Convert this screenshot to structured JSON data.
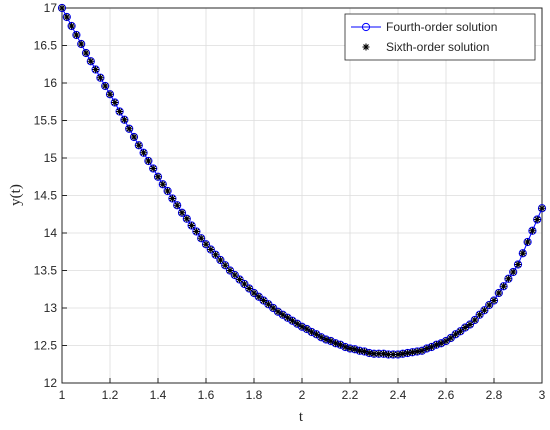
{
  "chart_data": {
    "type": "line",
    "xlabel": "t",
    "ylabel": "y(t)",
    "x": [
      1.0,
      1.02,
      1.04,
      1.06,
      1.08,
      1.1,
      1.12,
      1.14,
      1.16,
      1.18,
      1.2,
      1.22,
      1.24,
      1.26,
      1.28,
      1.3,
      1.32,
      1.34,
      1.36,
      1.38,
      1.4,
      1.42,
      1.44,
      1.46,
      1.48,
      1.5,
      1.52,
      1.54,
      1.56,
      1.58,
      1.6,
      1.62,
      1.64,
      1.66,
      1.68,
      1.7,
      1.72,
      1.74,
      1.76,
      1.78,
      1.8,
      1.82,
      1.84,
      1.86,
      1.88,
      1.9,
      1.92,
      1.94,
      1.96,
      1.98,
      2.0,
      2.02,
      2.04,
      2.06,
      2.08,
      2.1,
      2.12,
      2.14,
      2.16,
      2.18,
      2.2,
      2.22,
      2.24,
      2.26,
      2.28,
      2.3,
      2.32,
      2.34,
      2.36,
      2.38,
      2.4,
      2.42,
      2.44,
      2.46,
      2.48,
      2.5,
      2.52,
      2.54,
      2.56,
      2.58,
      2.6,
      2.62,
      2.64,
      2.66,
      2.68,
      2.7,
      2.72,
      2.74,
      2.76,
      2.78,
      2.8,
      2.82,
      2.84,
      2.86,
      2.88,
      2.9,
      2.92,
      2.94,
      2.96,
      2.98,
      3.0
    ],
    "series": [
      {
        "name": "Fourth-order solution",
        "color": "#0000ff",
        "marker": "circle",
        "values": [
          17.0,
          16.88,
          16.76,
          16.64,
          16.52,
          16.4,
          16.29,
          16.18,
          16.07,
          15.96,
          15.85,
          15.74,
          15.62,
          15.51,
          15.39,
          15.28,
          15.17,
          15.07,
          14.96,
          14.86,
          14.75,
          14.65,
          14.56,
          14.46,
          14.37,
          14.27,
          14.19,
          14.1,
          14.02,
          13.93,
          13.85,
          13.78,
          13.71,
          13.64,
          13.57,
          13.5,
          13.44,
          13.38,
          13.32,
          13.26,
          13.2,
          13.15,
          13.1,
          13.05,
          13.0,
          12.95,
          12.91,
          12.87,
          12.83,
          12.79,
          12.75,
          12.72,
          12.68,
          12.65,
          12.61,
          12.58,
          12.56,
          12.53,
          12.51,
          12.48,
          12.46,
          12.45,
          12.43,
          12.42,
          12.4,
          12.39,
          12.39,
          12.39,
          12.38,
          12.38,
          12.38,
          12.39,
          12.4,
          12.41,
          12.42,
          12.43,
          12.46,
          12.48,
          12.51,
          12.53,
          12.56,
          12.6,
          12.65,
          12.69,
          12.74,
          12.78,
          12.84,
          12.91,
          12.97,
          13.04,
          13.1,
          13.2,
          13.29,
          13.39,
          13.48,
          13.58,
          13.73,
          13.88,
          14.03,
          14.18,
          14.33
        ]
      },
      {
        "name": "Sixth-order solution",
        "color": "#000000",
        "marker": "asterisk",
        "values": [
          17.0,
          16.88,
          16.76,
          16.64,
          16.52,
          16.4,
          16.29,
          16.18,
          16.07,
          15.96,
          15.85,
          15.74,
          15.62,
          15.51,
          15.39,
          15.28,
          15.17,
          15.07,
          14.96,
          14.86,
          14.75,
          14.65,
          14.56,
          14.46,
          14.37,
          14.27,
          14.19,
          14.1,
          14.02,
          13.93,
          13.85,
          13.78,
          13.71,
          13.64,
          13.57,
          13.5,
          13.44,
          13.38,
          13.32,
          13.26,
          13.2,
          13.15,
          13.1,
          13.05,
          13.0,
          12.95,
          12.91,
          12.87,
          12.83,
          12.79,
          12.75,
          12.72,
          12.68,
          12.65,
          12.61,
          12.58,
          12.56,
          12.53,
          12.51,
          12.48,
          12.46,
          12.45,
          12.43,
          12.42,
          12.4,
          12.39,
          12.39,
          12.39,
          12.38,
          12.38,
          12.38,
          12.39,
          12.4,
          12.41,
          12.42,
          12.43,
          12.46,
          12.48,
          12.51,
          12.53,
          12.56,
          12.6,
          12.65,
          12.69,
          12.74,
          12.78,
          12.84,
          12.91,
          12.97,
          13.04,
          13.1,
          13.2,
          13.29,
          13.39,
          13.48,
          13.58,
          13.73,
          13.88,
          14.03,
          14.18,
          14.33
        ]
      }
    ],
    "xlim": [
      1,
      3
    ],
    "xticks": [
      1,
      1.2,
      1.4,
      1.6,
      1.8,
      2,
      2.2,
      2.4,
      2.6,
      2.8,
      3
    ],
    "ylim": [
      12,
      17
    ],
    "yticks": [
      12,
      12.5,
      13,
      13.5,
      14,
      14.5,
      15,
      15.5,
      16,
      16.5,
      17
    ],
    "grid": true,
    "legend": "top-right"
  }
}
